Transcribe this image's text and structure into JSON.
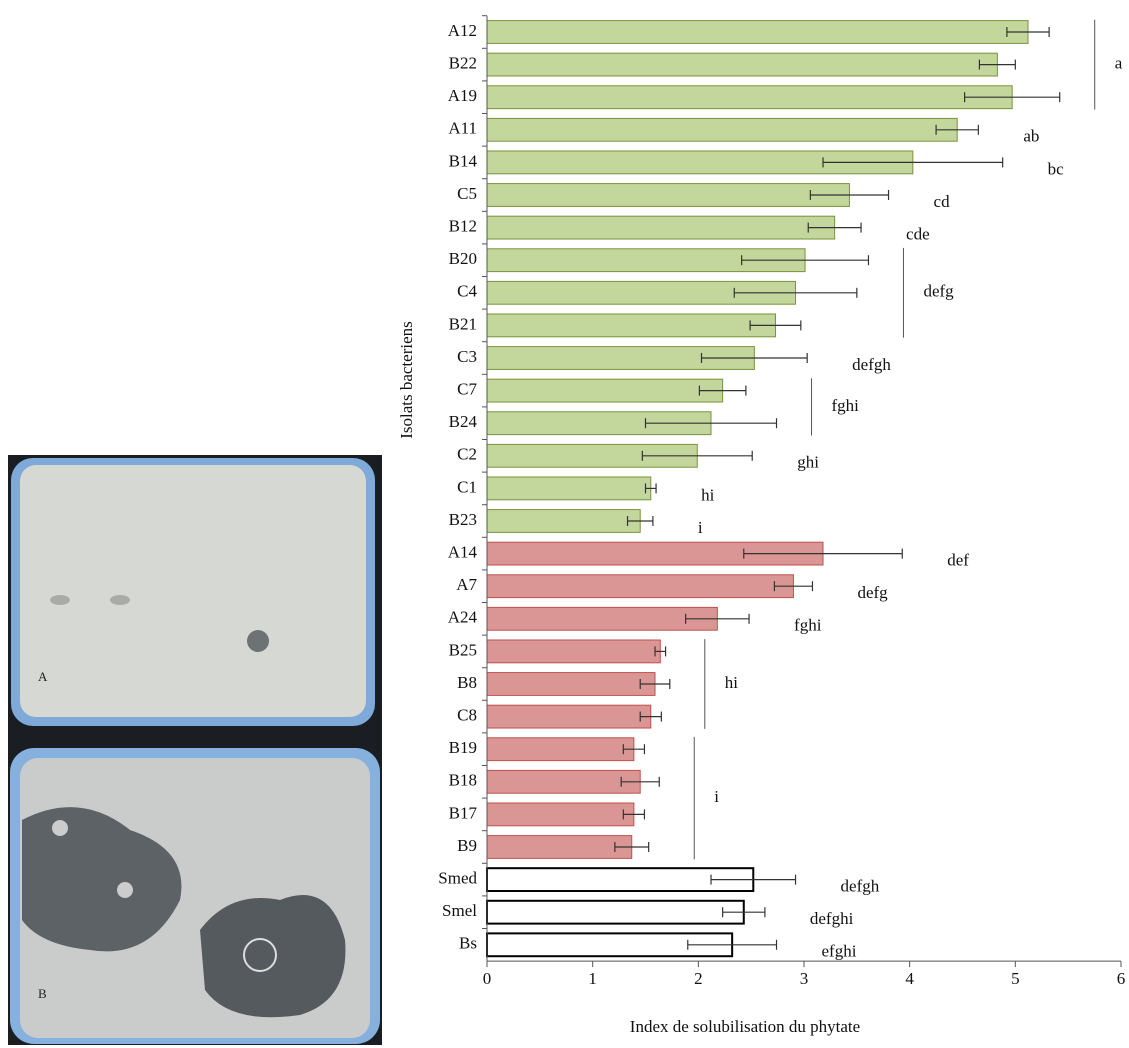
{
  "photo": {
    "labels": [
      "A",
      "B"
    ]
  },
  "chart_data": {
    "type": "bar",
    "orientation": "horizontal",
    "x_label": "Index de solubilisation du phytate",
    "y_label": "Isolats bacteriens",
    "categories": [
      "A12",
      "B22",
      "A19",
      "A11",
      "B14",
      "C5",
      "B12",
      "B20",
      "C4",
      "B21",
      "C3",
      "C7",
      "B24",
      "C2",
      "C1",
      "B23",
      "A14",
      "A7",
      "A24",
      "B25",
      "B8",
      "C8",
      "B19",
      "B18",
      "B17",
      "B9",
      "Smed",
      "Smel",
      "Bs"
    ],
    "values": [
      5.12,
      4.83,
      4.97,
      4.45,
      4.03,
      3.43,
      3.29,
      3.01,
      2.92,
      2.73,
      2.53,
      2.23,
      2.12,
      1.99,
      1.55,
      1.45,
      3.18,
      2.9,
      2.18,
      1.64,
      1.59,
      1.55,
      1.39,
      1.45,
      1.39,
      1.37,
      2.52,
      2.43,
      2.32
    ],
    "errors": [
      0.2,
      0.17,
      0.45,
      0.2,
      0.85,
      0.37,
      0.25,
      0.6,
      0.58,
      0.24,
      0.5,
      0.22,
      0.62,
      0.52,
      0.05,
      0.12,
      0.75,
      0.18,
      0.3,
      0.05,
      0.14,
      0.1,
      0.1,
      0.18,
      0.1,
      0.16,
      0.4,
      0.2,
      0.42
    ],
    "colors": [
      "#c3d69b",
      "#c3d69b",
      "#c3d69b",
      "#c3d69b",
      "#c3d69b",
      "#c3d69b",
      "#c3d69b",
      "#c3d69b",
      "#c3d69b",
      "#c3d69b",
      "#c3d69b",
      "#c3d69b",
      "#c3d69b",
      "#c3d69b",
      "#c3d69b",
      "#c3d69b",
      "#d99694",
      "#d99694",
      "#d99694",
      "#d99694",
      "#d99694",
      "#d99694",
      "#d99694",
      "#d99694",
      "#d99694",
      "#d99694",
      "#ffffff",
      "#ffffff",
      "#ffffff"
    ],
    "xlim": [
      0,
      6
    ],
    "xticks": [
      0,
      1,
      2,
      3,
      4,
      5,
      6
    ],
    "annotations": [
      {
        "label": "a",
        "span": [
          0,
          2
        ]
      },
      {
        "label": "ab",
        "span": [
          3,
          3
        ]
      },
      {
        "label": "bc",
        "span": [
          4,
          4
        ]
      },
      {
        "label": "cd",
        "span": [
          5,
          5
        ]
      },
      {
        "label": "cde",
        "span": [
          6,
          6
        ]
      },
      {
        "label": "defg",
        "span": [
          7,
          9
        ]
      },
      {
        "label": "defgh",
        "span": [
          10,
          10
        ]
      },
      {
        "label": "fghi",
        "span": [
          11,
          12
        ]
      },
      {
        "label": "ghi",
        "span": [
          13,
          13
        ]
      },
      {
        "label": "hi",
        "span": [
          14,
          14
        ]
      },
      {
        "label": "i",
        "span": [
          15,
          15
        ]
      },
      {
        "label": "def",
        "span": [
          16,
          16
        ]
      },
      {
        "label": "defg",
        "span": [
          17,
          17
        ]
      },
      {
        "label": "fghi",
        "span": [
          18,
          18
        ]
      },
      {
        "label": "hi",
        "span": [
          19,
          21
        ]
      },
      {
        "label": "i",
        "span": [
          22,
          25
        ]
      },
      {
        "label": "defgh",
        "span": [
          26,
          26
        ]
      },
      {
        "label": "defghi",
        "span": [
          27,
          27
        ]
      },
      {
        "label": "efghi",
        "span": [
          28,
          28
        ]
      }
    ]
  }
}
